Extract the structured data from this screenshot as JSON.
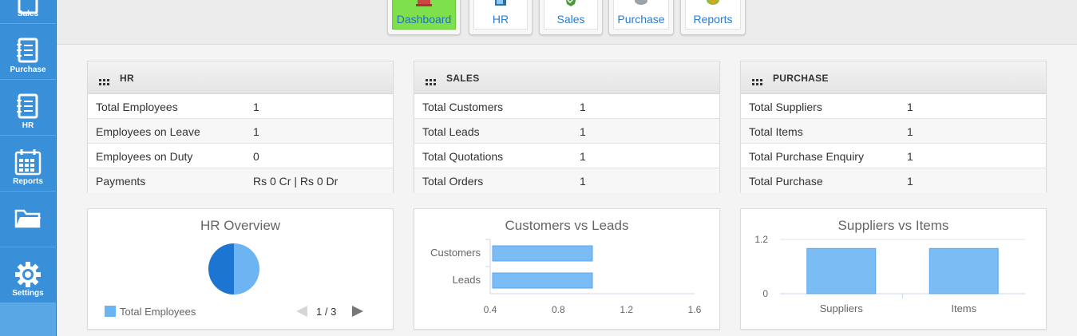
{
  "sidebar": {
    "items": [
      {
        "label": "Sales",
        "icon": "notebook-icon"
      },
      {
        "label": "Purchase",
        "icon": "notebook-icon"
      },
      {
        "label": "HR",
        "icon": "notebook-icon"
      },
      {
        "label": "Reports",
        "icon": "calendar-icon"
      },
      {
        "label": "",
        "icon": "folder-icon"
      },
      {
        "label": "Settings",
        "icon": "gear-icon"
      }
    ]
  },
  "tabs": [
    {
      "label": "Dashboard",
      "active": true
    },
    {
      "label": "HR",
      "active": false
    },
    {
      "label": "Sales",
      "active": false
    },
    {
      "label": "Purchase",
      "active": false
    },
    {
      "label": "Reports",
      "active": false
    }
  ],
  "panels": {
    "hr": {
      "title": "HR",
      "rows": [
        {
          "k": "Total Employees",
          "v": "1"
        },
        {
          "k": "Employees on Leave",
          "v": "1"
        },
        {
          "k": "Employees on Duty",
          "v": "0"
        },
        {
          "k": "Payments",
          "v": "Rs 0 Cr | Rs 0 Dr"
        }
      ]
    },
    "sales": {
      "title": "SALES",
      "rows": [
        {
          "k": "Total Customers",
          "v": "1"
        },
        {
          "k": "Total Leads",
          "v": "1"
        },
        {
          "k": "Total Quotations",
          "v": "1"
        },
        {
          "k": "Total Orders",
          "v": "1"
        }
      ]
    },
    "purchase": {
      "title": "PURCHASE",
      "rows": [
        {
          "k": "Total Suppliers",
          "v": "1"
        },
        {
          "k": "Total Items",
          "v": "1"
        },
        {
          "k": "Total Purchase Enquiry",
          "v": "1"
        },
        {
          "k": "Total Purchase",
          "v": "1"
        }
      ]
    }
  },
  "colors": {
    "accent": "#3a8fd9",
    "active_tab": "#7ee04a",
    "series_light": "#6cb4f2",
    "series_dark": "#1c75d0"
  },
  "chart_data": [
    {
      "type": "pie",
      "title": "HR Overview",
      "slices": [
        {
          "name": "Total Employees",
          "value": 1,
          "color": "#6cb4f2"
        },
        {
          "name": "",
          "value": 1,
          "color": "#1c75d0"
        }
      ],
      "legend": {
        "label": "Total Employees",
        "placement": "bottom-left"
      },
      "pager": "1 / 3"
    },
    {
      "type": "bar",
      "orientation": "horizontal",
      "title": "Customers vs Leads",
      "categories": [
        "Customers",
        "Leads"
      ],
      "values": [
        1,
        1
      ],
      "xlim": [
        0.4,
        1.6
      ],
      "ticks": [
        "0.4",
        "0.8",
        "1.2",
        "1.6"
      ]
    },
    {
      "type": "bar",
      "title": "Suppliers vs Items",
      "categories": [
        "Suppliers",
        "Items"
      ],
      "values": [
        1,
        1
      ],
      "ylim": [
        0,
        1.2
      ],
      "ticks": [
        "0",
        "1.2"
      ]
    }
  ]
}
